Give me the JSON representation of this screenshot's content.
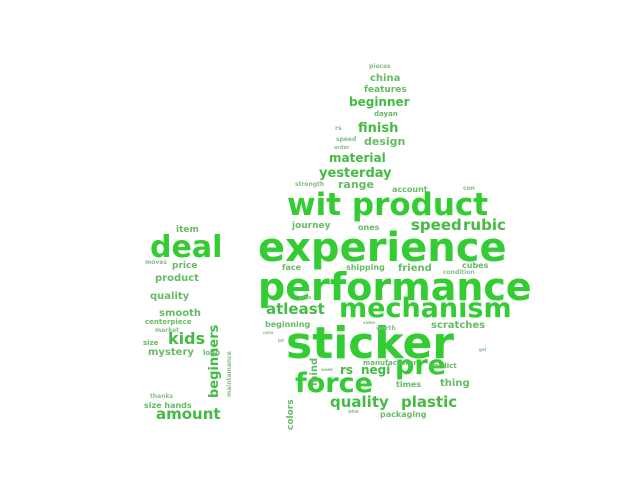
{
  "colors": {
    "strong": "#33cc33",
    "medium": "#44bb44",
    "light": "#66bb66",
    "faint": "#88bb88"
  },
  "words": [
    {
      "text": "sticker",
      "weight": 1.0,
      "vertical": false
    },
    {
      "text": "experience",
      "weight": 0.86,
      "vertical": false
    },
    {
      "text": "performance",
      "weight": 0.84,
      "vertical": false
    },
    {
      "text": "wit product",
      "weight": 0.74,
      "vertical": false
    },
    {
      "text": "deal",
      "weight": 0.72,
      "vertical": false
    },
    {
      "text": "mechanism",
      "weight": 0.62,
      "vertical": false
    },
    {
      "text": "force",
      "weight": 0.6,
      "vertical": false
    },
    {
      "text": "pre",
      "weight": 0.6,
      "vertical": false
    },
    {
      "text": "kids",
      "weight": 0.38,
      "vertical": false
    },
    {
      "text": "atleast",
      "weight": 0.34,
      "vertical": false
    },
    {
      "text": "speed",
      "weight": 0.34,
      "vertical": false
    },
    {
      "text": "rubic",
      "weight": 0.34,
      "vertical": false
    },
    {
      "text": "quality",
      "weight": 0.32,
      "vertical": false
    },
    {
      "text": "plastic",
      "weight": 0.32,
      "vertical": false
    },
    {
      "text": "amount",
      "weight": 0.32,
      "vertical": false
    },
    {
      "text": "beginners",
      "weight": 0.3,
      "vertical": true
    },
    {
      "text": "yesterday",
      "weight": 0.3,
      "vertical": false
    },
    {
      "text": "finish",
      "weight": 0.28,
      "vertical": false
    },
    {
      "text": "beginner",
      "weight": 0.26,
      "vertical": false
    },
    {
      "text": "material",
      "weight": 0.26,
      "vertical": false
    },
    {
      "text": "rs",
      "weight": 0.26,
      "vertical": false
    },
    {
      "text": "negi",
      "weight": 0.26,
      "vertical": false
    },
    {
      "text": "design",
      "weight": 0.24,
      "vertical": false
    },
    {
      "text": "range",
      "weight": 0.24,
      "vertical": false
    },
    {
      "text": "china",
      "weight": 0.22,
      "vertical": false
    },
    {
      "text": "smooth",
      "weight": 0.22,
      "vertical": false
    },
    {
      "text": "quality",
      "weight": 0.22,
      "vertical": false
    },
    {
      "text": "product",
      "weight": 0.22,
      "vertical": false
    },
    {
      "text": "mystery",
      "weight": 0.22,
      "vertical": false
    },
    {
      "text": "mind",
      "weight": 0.22,
      "vertical": true
    },
    {
      "text": "friend",
      "weight": 0.22,
      "vertical": false
    },
    {
      "text": "scratches",
      "weight": 0.22,
      "vertical": false
    },
    {
      "text": "thing",
      "weight": 0.22,
      "vertical": false
    },
    {
      "text": "colors",
      "weight": 0.18,
      "vertical": true
    },
    {
      "text": "features",
      "weight": 0.18,
      "vertical": false
    },
    {
      "text": "price",
      "weight": 0.18,
      "vertical": false
    },
    {
      "text": "item",
      "weight": 0.18,
      "vertical": false
    },
    {
      "text": "journey",
      "weight": 0.18,
      "vertical": false
    },
    {
      "text": "ones",
      "weight": 0.18,
      "vertical": false
    },
    {
      "text": "beginning",
      "weight": 0.18,
      "vertical": false
    },
    {
      "text": "size hands",
      "weight": 0.18,
      "vertical": false
    },
    {
      "text": "packaging",
      "weight": 0.18,
      "vertical": false
    },
    {
      "text": "times",
      "weight": 0.18,
      "vertical": false
    },
    {
      "text": "face",
      "weight": 0.16,
      "vertical": false
    },
    {
      "text": "cubes",
      "weight": 0.16,
      "vertical": false
    },
    {
      "text": "shipping",
      "weight": 0.16,
      "vertical": false
    },
    {
      "text": "account",
      "weight": 0.16,
      "vertical": false
    },
    {
      "text": "centerpiece",
      "weight": 0.14,
      "vertical": false
    },
    {
      "text": "size",
      "weight": 0.14,
      "vertical": false
    },
    {
      "text": "logo",
      "weight": 0.14,
      "vertical": false
    },
    {
      "text": "manufacturer",
      "weight": 0.14,
      "vertical": false
    },
    {
      "text": "verdict",
      "weight": 0.14,
      "vertical": false
    },
    {
      "text": "dayan",
      "weight": 0.14,
      "vertical": false
    },
    {
      "text": "condition",
      "weight": 0.12,
      "vertical": false
    },
    {
      "text": "strength",
      "weight": 0.12,
      "vertical": false
    },
    {
      "text": "speed",
      "weight": 0.12,
      "vertical": false
    },
    {
      "text": "con",
      "weight": 0.12,
      "vertical": false
    },
    {
      "text": "pieces",
      "weight": 0.12,
      "vertical": false
    },
    {
      "text": "rs",
      "weight": 0.12,
      "vertical": false
    },
    {
      "text": "order",
      "weight": 0.1,
      "vertical": false
    },
    {
      "text": "maintainance",
      "weight": 0.1,
      "vertical": true
    },
    {
      "text": "market",
      "weight": 0.1,
      "vertical": false
    },
    {
      "text": "moves",
      "weight": 0.1,
      "vertical": false
    },
    {
      "text": "thanks",
      "weight": 0.1,
      "vertical": false
    },
    {
      "text": "worth",
      "weight": 0.1,
      "vertical": false
    },
    {
      "text": "pros",
      "weight": 0.1,
      "vertical": false
    },
    {
      "text": "week",
      "weight": 0.08,
      "vertical": false
    },
    {
      "text": "one",
      "weight": 0.08,
      "vertical": false
    },
    {
      "text": "video",
      "weight": 0.08,
      "vertical": false
    },
    {
      "text": "cons",
      "weight": 0.08,
      "vertical": false
    },
    {
      "text": "bit",
      "weight": 0.08,
      "vertical": false
    },
    {
      "text": "get",
      "weight": 0.08,
      "vertical": false
    }
  ]
}
